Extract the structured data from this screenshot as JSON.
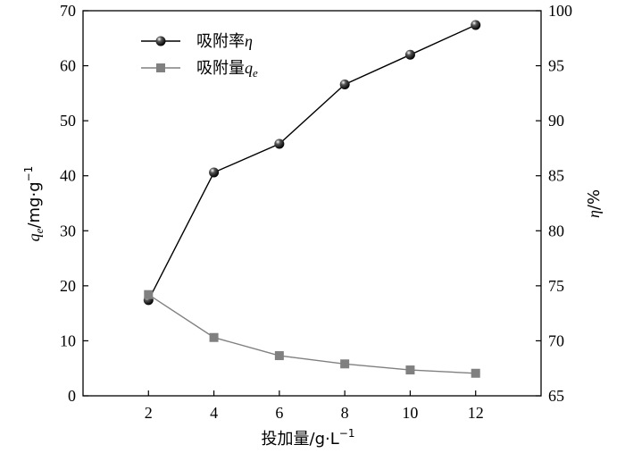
{
  "chart_data": {
    "type": "line",
    "x": [
      2,
      4,
      6,
      8,
      10,
      12
    ],
    "xlim": [
      0,
      14
    ],
    "xticks": [
      2,
      4,
      6,
      8,
      10,
      12
    ],
    "xlabel": "投加量/g·L",
    "xlabel_sup": "−1",
    "y_left": {
      "label_var": "q",
      "label_sub": "e",
      "label_unit": "/mg·g",
      "label_sup": "−1",
      "lim": [
        0,
        70
      ],
      "ticks": [
        0,
        10,
        20,
        30,
        40,
        50,
        60,
        70
      ]
    },
    "y_right": {
      "label_var": "η",
      "label_unit": "/%",
      "lim": [
        65,
        100
      ],
      "ticks": [
        65,
        70,
        75,
        80,
        85,
        90,
        95,
        100
      ]
    },
    "series": [
      {
        "name": "吸附率",
        "name_var": "η",
        "axis": "right",
        "marker": "sphere",
        "color": "#000000",
        "values": [
          73.7,
          85.3,
          87.9,
          93.3,
          96.0,
          98.7
        ]
      },
      {
        "name": "吸附量",
        "name_var": "q",
        "name_sub": "e",
        "axis": "left",
        "marker": "square",
        "color": "#808080",
        "values": [
          18.4,
          10.6,
          7.3,
          5.8,
          4.7,
          4.1
        ]
      }
    ],
    "legend_position": "top-left",
    "grid": false
  }
}
